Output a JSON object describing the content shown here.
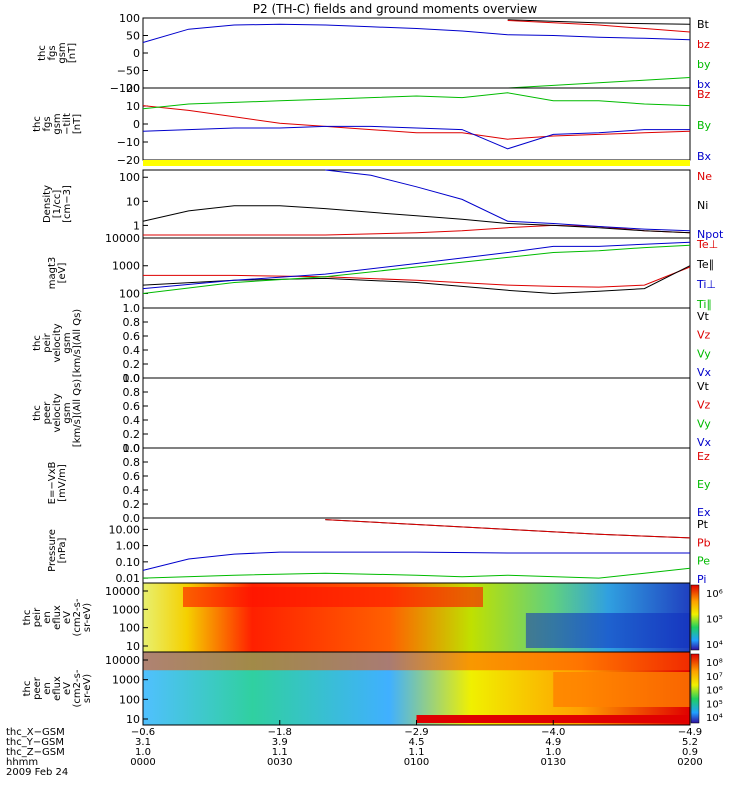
{
  "title": "P2 (TH-C) fields and ground moments overview",
  "chart_data": [
    {
      "type": "line",
      "ylabel_lines": [
        "thc",
        "fgs",
        "gsm",
        "[nT]"
      ],
      "yticks": [
        "100",
        "50",
        "0",
        "−50",
        "−100"
      ],
      "ylim": [
        -100,
        100
      ],
      "series": [
        {
          "name": "Bt",
          "color": "#000000",
          "x": [
            0,
            10,
            20,
            30,
            40,
            50,
            60
          ],
          "y": [
            null,
            null,
            null,
            null,
            95,
            86,
            82
          ]
        },
        {
          "name": "bz",
          "color": "#dd0000",
          "x": [
            0,
            10,
            20,
            30,
            40,
            50,
            60
          ],
          "y": [
            null,
            null,
            null,
            null,
            93,
            80,
            60
          ]
        },
        {
          "name": "by",
          "color": "#00bb00",
          "x": [
            0,
            10,
            20,
            30,
            40,
            50,
            60
          ],
          "y": [
            null,
            null,
            null,
            null,
            -100,
            -85,
            -70
          ]
        },
        {
          "name": "bx",
          "color": "#0000cc",
          "x": [
            0,
            5,
            10,
            15,
            20,
            25,
            30,
            35,
            40,
            45,
            50,
            55,
            60
          ],
          "y": [
            30,
            68,
            80,
            82,
            80,
            75,
            70,
            63,
            52,
            50,
            45,
            42,
            38
          ]
        }
      ]
    },
    {
      "type": "line",
      "ylabel_lines": [
        "thc",
        "fgs",
        "gsm",
        "−tilt",
        "[nT]"
      ],
      "yticks": [
        "20",
        "10",
        "0",
        "−10",
        "−20"
      ],
      "ylim": [
        -25,
        20
      ],
      "series": [
        {
          "name": "Bz",
          "color": "#dd0000",
          "x": [
            0,
            5,
            10,
            15,
            20,
            25,
            30,
            35,
            40,
            45,
            50,
            55,
            60
          ],
          "y": [
            9,
            6,
            2,
            -2,
            -4,
            -6,
            -8,
            -8,
            -12,
            -10,
            -9,
            -8,
            -7
          ]
        },
        {
          "name": "By",
          "color": "#00bb00",
          "x": [
            0,
            5,
            10,
            15,
            20,
            25,
            30,
            35,
            40,
            45,
            50,
            55,
            60
          ],
          "y": [
            7,
            10,
            11,
            12,
            13,
            14,
            15,
            14,
            17,
            12,
            12,
            10,
            9
          ]
        },
        {
          "name": "Bx",
          "color": "#0000cc",
          "x": [
            0,
            5,
            10,
            15,
            20,
            25,
            30,
            35,
            40,
            45,
            50,
            55,
            60
          ],
          "y": [
            -7,
            -6,
            -5,
            -5,
            -4,
            -4,
            -5,
            -6,
            -18,
            -9,
            -8,
            -6,
            -6
          ]
        }
      ]
    },
    {
      "type": "line",
      "yscale": "log",
      "ylabel_lines": [
        "Density",
        "[1/cc]",
        "[cm−3]"
      ],
      "yticks": [
        "100",
        "10",
        "1"
      ],
      "ylim": [
        0.3,
        200
      ],
      "series": [
        {
          "name": "Ne",
          "color": "#dd0000",
          "x": [
            0,
            10,
            20,
            30,
            35,
            40,
            45,
            50,
            55,
            60
          ],
          "y": [
            0.4,
            0.4,
            0.4,
            0.5,
            0.6,
            0.8,
            1,
            0.9,
            0.6,
            0.5
          ]
        },
        {
          "name": "Ni",
          "color": "#000000",
          "x": [
            0,
            5,
            10,
            15,
            20,
            25,
            30,
            35,
            40,
            45,
            50,
            55,
            60
          ],
          "y": [
            1.5,
            4,
            6.5,
            6.5,
            5,
            3.5,
            2.5,
            1.8,
            1.2,
            1,
            0.8,
            0.6,
            0.5
          ]
        },
        {
          "name": "Npot",
          "color": "#0000cc",
          "x": [
            20,
            25,
            30,
            35,
            40,
            45,
            50,
            55,
            60
          ],
          "y": [
            200,
            120,
            40,
            12,
            1.5,
            1.2,
            0.9,
            0.7,
            0.6
          ]
        }
      ]
    },
    {
      "type": "line",
      "yscale": "log",
      "ylabel_lines": [
        "magt3",
        "[eV]"
      ],
      "yticks": [
        "10000",
        "1000",
        "100"
      ],
      "ylim": [
        30,
        10000
      ],
      "series": [
        {
          "name": "Te⊥",
          "color": "#dd0000",
          "x": [
            0,
            10,
            20,
            30,
            40,
            45,
            50,
            55,
            60
          ],
          "y": [
            450,
            450,
            400,
            300,
            200,
            180,
            170,
            200,
            900
          ]
        },
        {
          "name": "Te∥",
          "color": "#000000",
          "x": [
            0,
            10,
            20,
            30,
            40,
            45,
            50,
            55,
            60
          ],
          "y": [
            200,
            300,
            350,
            250,
            130,
            100,
            120,
            150,
            1000
          ]
        },
        {
          "name": "Ti⊥",
          "color": "#0000cc",
          "x": [
            0,
            10,
            20,
            30,
            40,
            45,
            50,
            55,
            60
          ],
          "y": [
            150,
            300,
            500,
            1200,
            3000,
            5000,
            5000,
            6000,
            7000
          ]
        },
        {
          "name": "Ti∥",
          "color": "#00bb00",
          "x": [
            0,
            10,
            20,
            30,
            40,
            45,
            50,
            55,
            60
          ],
          "y": [
            100,
            250,
            400,
            900,
            2000,
            3000,
            3500,
            4500,
            5500
          ]
        }
      ]
    },
    {
      "type": "line",
      "ylabel_lines": [
        "thc",
        "peir",
        "velocity",
        "gsm",
        "[km/s](All Qs)"
      ],
      "yticks": [
        "1.0",
        "0.8",
        "0.6",
        "0.4",
        "0.2",
        "0.0"
      ],
      "ylim": [
        0,
        1
      ],
      "legend": [
        "Vt",
        "Vz",
        "Vy",
        "Vx"
      ],
      "series": []
    },
    {
      "type": "line",
      "ylabel_lines": [
        "thc",
        "peer",
        "velocity",
        "gsm",
        "[km/s](All Qs)"
      ],
      "yticks": [
        "1.0",
        "0.8",
        "0.6",
        "0.4",
        "0.2",
        "0.0"
      ],
      "ylim": [
        0,
        1
      ],
      "legend": [
        "Vt",
        "Vz",
        "Vy",
        "Vx"
      ],
      "series": []
    },
    {
      "type": "line",
      "ylabel_lines": [
        "E=−VxB",
        "[mV/m]"
      ],
      "yticks": [
        "1.0",
        "0.8",
        "0.6",
        "0.4",
        "0.2",
        "0.0"
      ],
      "ylim": [
        0,
        1
      ],
      "legend": [
        "Ez",
        "Ey",
        "Ex"
      ],
      "series": []
    },
    {
      "type": "line",
      "yscale": "log",
      "ylabel_lines": [
        "Pressure",
        "[nPa]"
      ],
      "yticks": [
        "10.00",
        "1.00",
        "0.10",
        "0.01"
      ],
      "ylim": [
        0.005,
        50
      ],
      "series": [
        {
          "name": "Pt",
          "color": "#000000",
          "x": [
            20,
            30,
            40,
            50,
            60
          ],
          "y": [
            40,
            20,
            10,
            5,
            3
          ]
        },
        {
          "name": "Pb",
          "color": "#dd0000",
          "x": [
            20,
            30,
            40,
            50,
            60
          ],
          "y": [
            40,
            20,
            10,
            5,
            3
          ]
        },
        {
          "name": "Pe",
          "color": "#00bb00",
          "x": [
            0,
            10,
            20,
            30,
            35,
            40,
            50,
            55,
            60
          ],
          "y": [
            0.01,
            0.015,
            0.02,
            0.015,
            0.012,
            0.015,
            0.01,
            0.02,
            0.04
          ]
        },
        {
          "name": "Pi",
          "color": "#0000cc",
          "x": [
            0,
            5,
            10,
            15,
            20,
            30,
            40,
            50,
            60
          ],
          "y": [
            0.03,
            0.15,
            0.3,
            0.4,
            0.4,
            0.4,
            0.35,
            0.35,
            0.35
          ]
        }
      ]
    },
    {
      "type": "heatmap",
      "ylabel_lines": [
        "thc",
        "peir",
        "en",
        "eflux",
        "eV",
        "(cm2-s-",
        "sr-eV)"
      ],
      "yticks": [
        "10000",
        "1000",
        "100",
        "10"
      ],
      "colorbar": [
        "10⁶",
        "10⁵",
        "10⁴"
      ]
    },
    {
      "type": "heatmap",
      "ylabel_lines": [
        "thc",
        "peer",
        "en",
        "eflux",
        "eV",
        "(cm2-s-",
        "sr-eV)"
      ],
      "yticks": [
        "10000",
        "1000",
        "100",
        "10"
      ],
      "colorbar": [
        "10⁸",
        "10⁷",
        "10⁶",
        "10⁵",
        "10⁴"
      ]
    }
  ],
  "xaxis": {
    "row_labels": [
      "thc_X−GSM",
      "thc_Y−GSM",
      "thc_Z−GSM",
      "hhmm",
      "2009 Feb 24"
    ],
    "ticks": [
      {
        "x": "−0.6",
        "y": "3.1",
        "z": "1.0",
        "t": "0000"
      },
      {
        "x": "−1.8",
        "y": "3.9",
        "z": "1.1",
        "t": "0030"
      },
      {
        "x": "−2.9",
        "y": "4.5",
        "z": "1.1",
        "t": "0100"
      },
      {
        "x": "−4.0",
        "y": "4.9",
        "z": "1.0",
        "t": "0130"
      },
      {
        "x": "−4.9",
        "y": "5.2",
        "z": "0.9",
        "t": "0200"
      }
    ]
  }
}
